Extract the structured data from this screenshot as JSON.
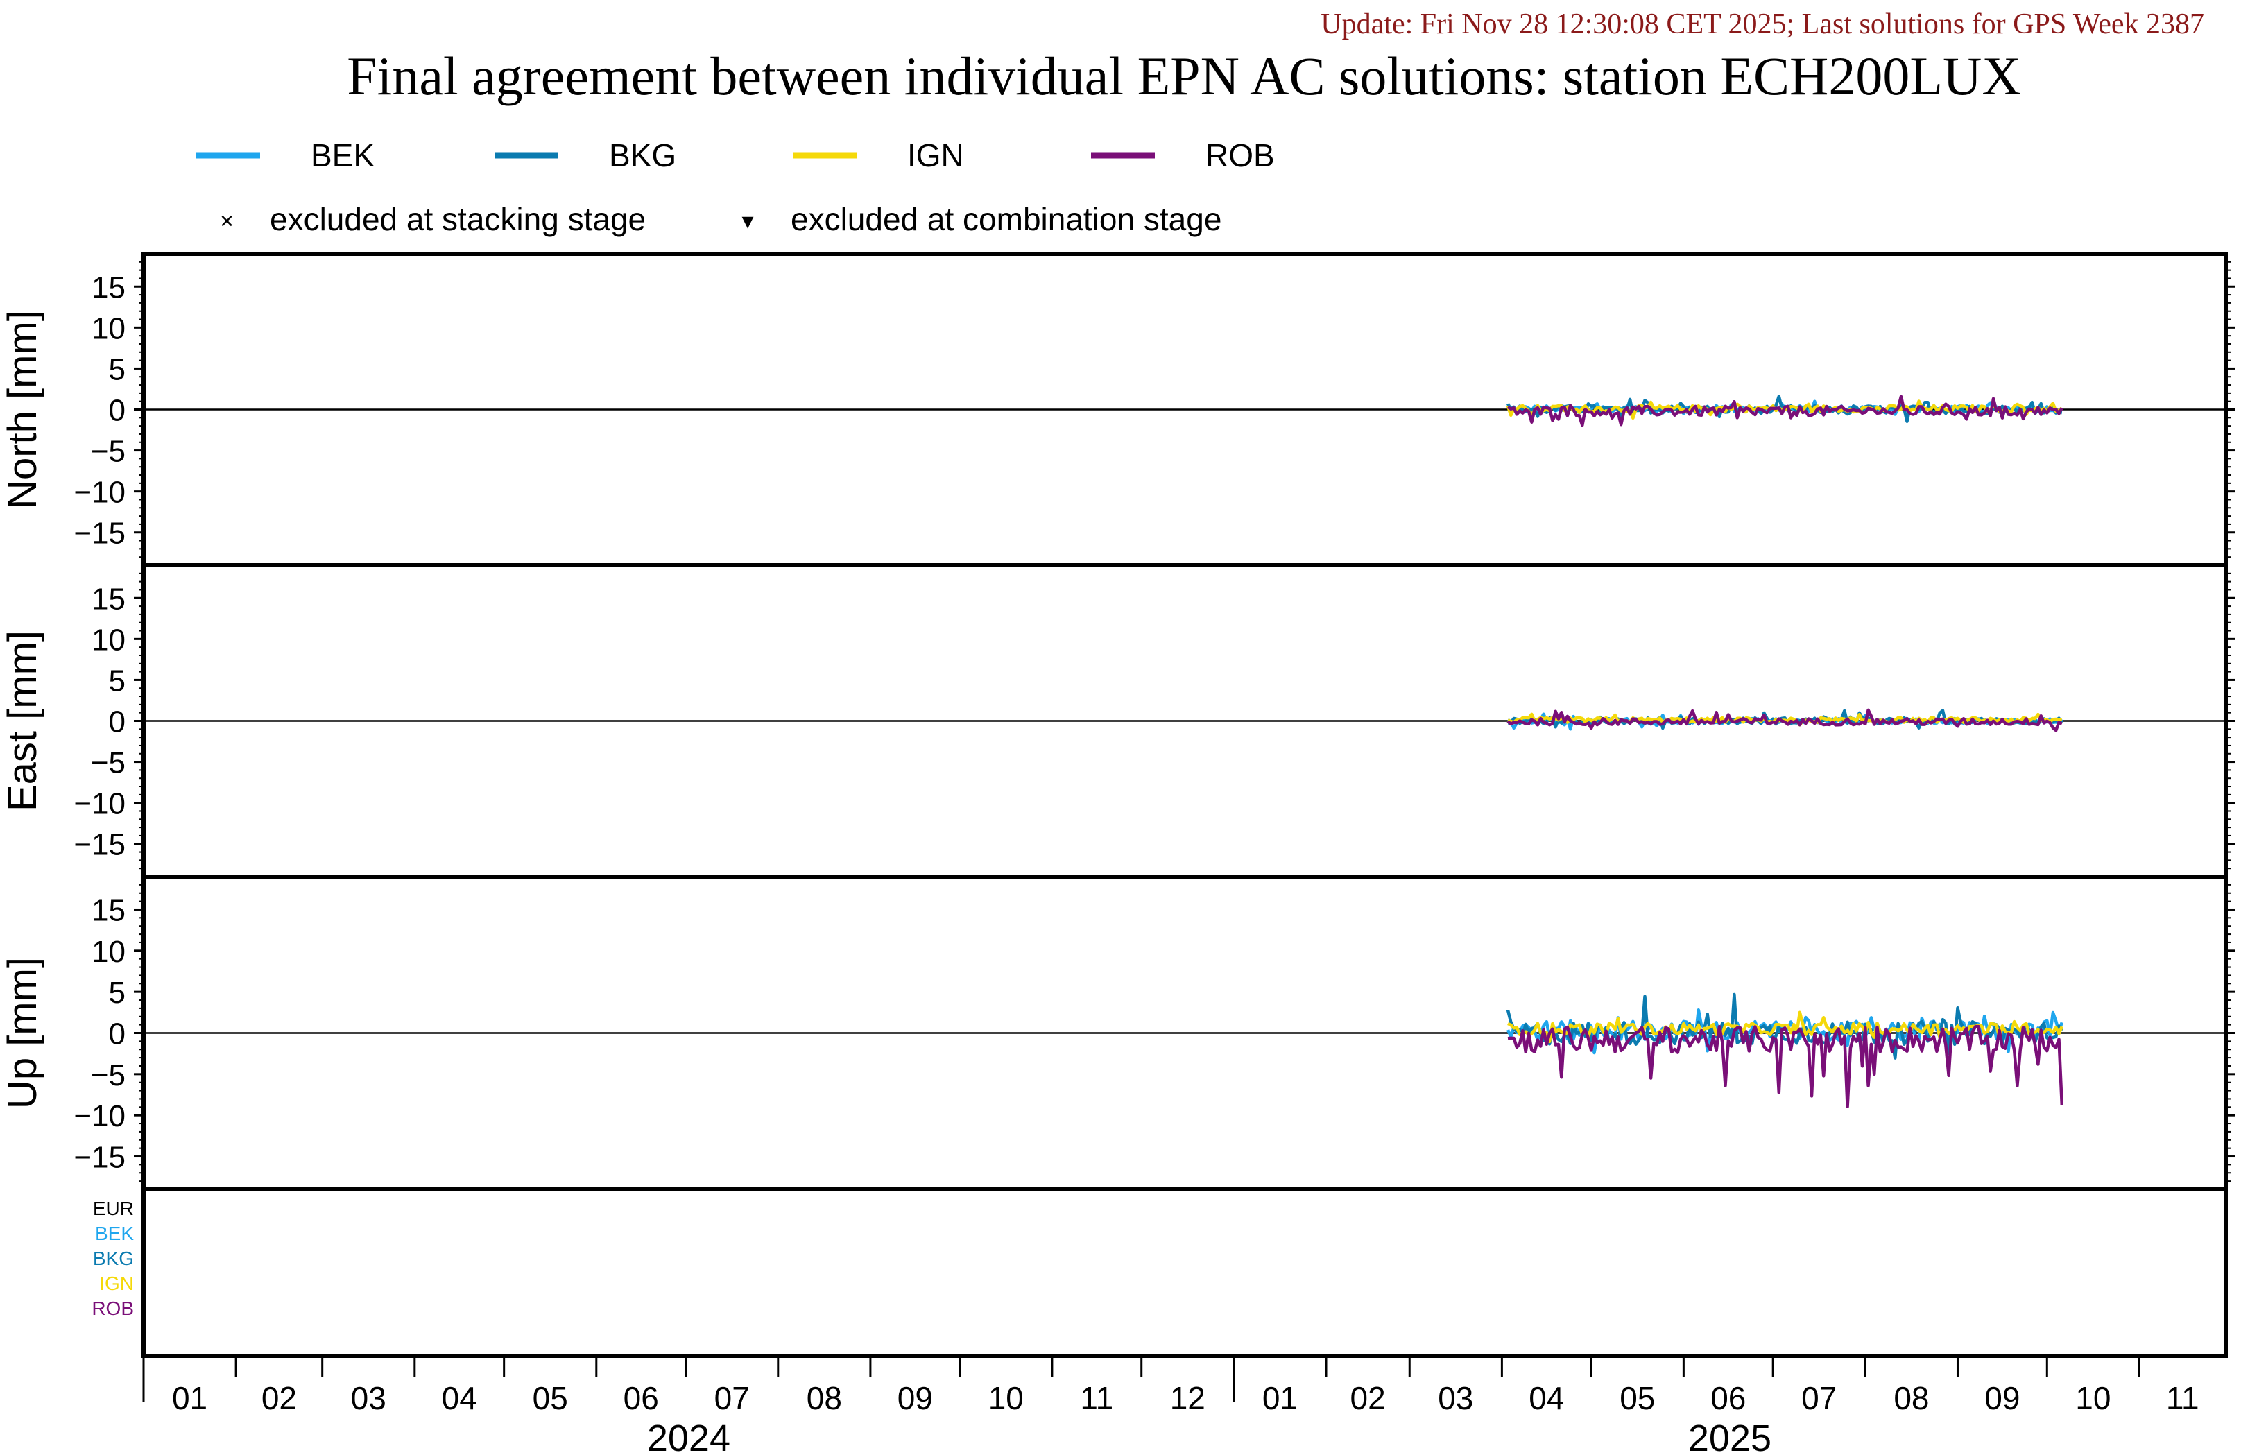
{
  "header": {
    "update_line": "Update: Fri Nov 28 12:30:08 CET 2025; Last solutions for GPS Week 2387",
    "title": "Final agreement between individual EPN AC solutions: station ECH200LUX"
  },
  "legend": {
    "series": [
      {
        "name": "BEK",
        "color": "#1fa6ee"
      },
      {
        "name": "BKG",
        "color": "#0b7bb0"
      },
      {
        "name": "IGN",
        "color": "#f5d90a"
      },
      {
        "name": "ROB",
        "color": "#7a0f78"
      }
    ],
    "markers": [
      {
        "symbol": "×",
        "label": "excluded at stacking stage"
      },
      {
        "symbol": "▾",
        "label": "excluded at combination stage"
      }
    ]
  },
  "colors": {
    "header_text": "#8b1a1a",
    "frame": "#000000",
    "eur": "#000000"
  },
  "ac_list": [
    {
      "name": "EUR",
      "color": "#000000"
    },
    {
      "name": "BEK",
      "color": "#1fa6ee"
    },
    {
      "name": "BKG",
      "color": "#0b7bb0"
    },
    {
      "name": "IGN",
      "color": "#f5d90a"
    },
    {
      "name": "ROB",
      "color": "#7a0f78"
    }
  ],
  "xaxis": {
    "month_labels": [
      "01",
      "02",
      "03",
      "04",
      "05",
      "06",
      "07",
      "08",
      "09",
      "10",
      "11",
      "12",
      "01",
      "02",
      "03",
      "04",
      "05",
      "06",
      "07",
      "08",
      "09",
      "10",
      "11"
    ],
    "year_labels": [
      "2024",
      "2025"
    ]
  },
  "chart_data": [
    {
      "type": "line",
      "panel": "north",
      "ylabel": "North [mm]",
      "ylim": [
        -19,
        19
      ],
      "yticks": [
        -15,
        -10,
        -5,
        0,
        5,
        10,
        15
      ],
      "xlim": [
        "2024-01-01",
        "2025-11-30"
      ],
      "data_range": [
        "2025-04-03",
        "2025-10-06"
      ],
      "series": [
        {
          "name": "BEK",
          "amp": 0.4,
          "spike": 0.8,
          "bias": 0.1
        },
        {
          "name": "BKG",
          "amp": 0.5,
          "spike": 1.2,
          "bias": 0.0
        },
        {
          "name": "IGN",
          "amp": 0.4,
          "spike": 0.8,
          "bias": 0.1
        },
        {
          "name": "ROB",
          "amp": 0.6,
          "spike": 1.4,
          "bias": -0.2
        }
      ]
    },
    {
      "type": "line",
      "panel": "east",
      "ylabel": "East [mm]",
      "ylim": [
        -19,
        19
      ],
      "yticks": [
        -15,
        -10,
        -5,
        0,
        5,
        10,
        15
      ],
      "xlim": [
        "2024-01-01",
        "2025-11-30"
      ],
      "data_range": [
        "2025-04-03",
        "2025-10-06"
      ],
      "series": [
        {
          "name": "BEK",
          "amp": 0.3,
          "spike": 0.8,
          "bias": 0.0
        },
        {
          "name": "BKG",
          "amp": 0.4,
          "spike": 1.0,
          "bias": 0.0
        },
        {
          "name": "IGN",
          "amp": 0.3,
          "spike": 0.7,
          "bias": 0.1
        },
        {
          "name": "ROB",
          "amp": 0.4,
          "spike": 1.2,
          "bias": -0.1
        }
      ]
    },
    {
      "type": "line",
      "panel": "up",
      "ylabel": "Up [mm]",
      "ylim": [
        -19,
        19
      ],
      "yticks": [
        -15,
        -10,
        -5,
        0,
        5,
        10,
        15
      ],
      "xlim": [
        "2024-01-01",
        "2025-11-30"
      ],
      "data_range": [
        "2025-04-03",
        "2025-10-06"
      ],
      "series": [
        {
          "name": "BEK",
          "amp": 1.2,
          "spike": 3.0,
          "bias": 0.3
        },
        {
          "name": "BKG",
          "amp": 1.4,
          "spike": 4.5,
          "bias": 0.0
        },
        {
          "name": "IGN",
          "amp": 0.7,
          "spike": 1.5,
          "bias": 0.5
        },
        {
          "name": "ROB",
          "amp": 1.6,
          "spike": -7.8,
          "bias": -0.8
        }
      ]
    }
  ]
}
